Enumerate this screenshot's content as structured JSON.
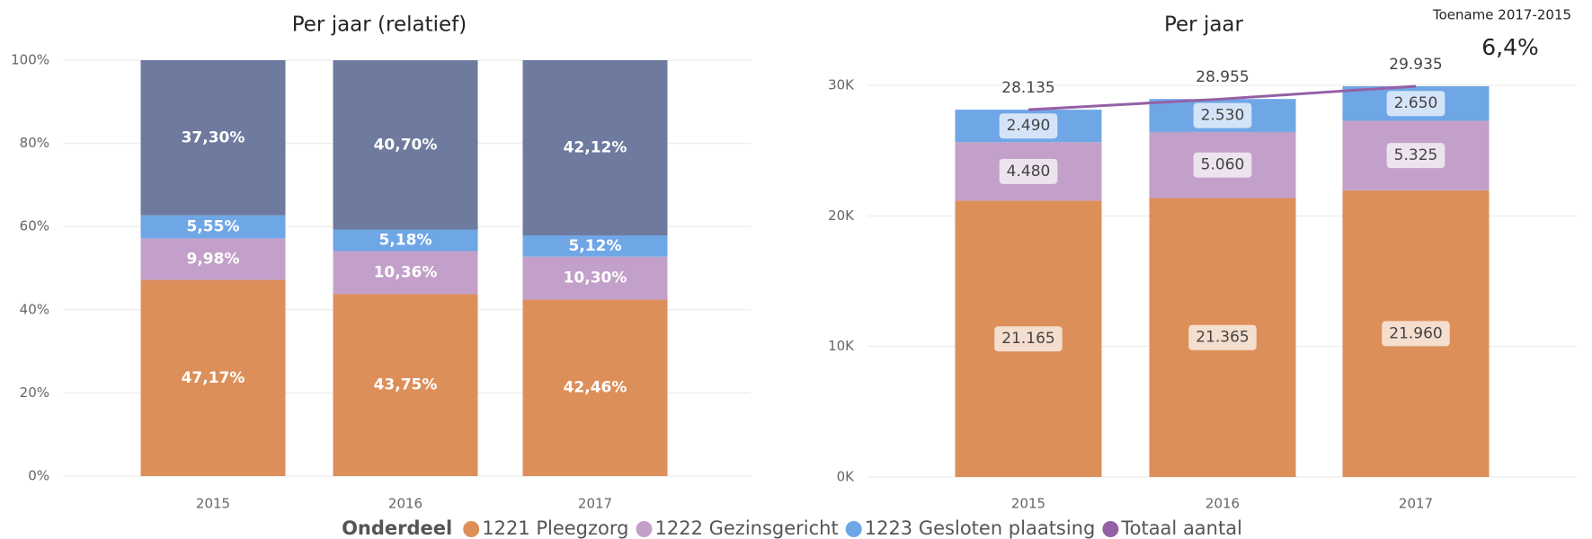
{
  "chart_data": [
    {
      "type": "bar",
      "stacked": true,
      "title": "Per jaar (relatief)",
      "categories": [
        "2015",
        "2016",
        "2017"
      ],
      "ylim": [
        0,
        100
      ],
      "yticks": [
        {
          "value": 0,
          "label": "0%"
        },
        {
          "value": 20,
          "label": "20%"
        },
        {
          "value": 40,
          "label": "40%"
        },
        {
          "value": 60,
          "label": "60%"
        },
        {
          "value": 80,
          "label": "80%"
        },
        {
          "value": 100,
          "label": "100%"
        }
      ],
      "grid": true,
      "series": [
        {
          "color": "#dd8f5a",
          "values": [
            47.17,
            43.75,
            42.46
          ],
          "value_labels": [
            "47,17%",
            "43,75%",
            "42,46%"
          ]
        },
        {
          "color": "#c3a0c9",
          "values": [
            9.98,
            10.36,
            10.3
          ],
          "value_labels": [
            "9,98%",
            "10,36%",
            "10,30%"
          ]
        },
        {
          "color": "#6fa6e6",
          "values": [
            5.55,
            5.18,
            5.12
          ],
          "value_labels": [
            "5,55%",
            "5,18%",
            "5,12%"
          ]
        },
        {
          "color": "#6e7a9e",
          "values": [
            37.3,
            40.7,
            42.12
          ],
          "value_labels": [
            "37,30%",
            "40,70%",
            "42,12%"
          ]
        }
      ]
    },
    {
      "type": "bar",
      "stacked": true,
      "title": "Per jaar",
      "categories": [
        "2015",
        "2016",
        "2017"
      ],
      "ylim": [
        0,
        30000
      ],
      "yticks": [
        {
          "value": 0,
          "label": "0K"
        },
        {
          "value": 10000,
          "label": "10K"
        },
        {
          "value": 20000,
          "label": "20K"
        },
        {
          "value": 30000,
          "label": "30K"
        }
      ],
      "grid": true,
      "series": [
        {
          "name": "1221 Pleegzorg",
          "color": "#dd8f5a",
          "values": [
            21165,
            21365,
            21960
          ],
          "value_labels": [
            "21.165",
            "21.365",
            "21.960"
          ]
        },
        {
          "name": "1222 Gezinsgericht",
          "color": "#c3a0c9",
          "values": [
            4480,
            5060,
            5325
          ],
          "value_labels": [
            "4.480",
            "5.060",
            "5.325"
          ]
        },
        {
          "name": "1223 Gesloten plaatsing",
          "color": "#6fa6e6",
          "values": [
            2490,
            2530,
            2650
          ],
          "value_labels": [
            "2.490",
            "2.530",
            "2.650"
          ]
        },
        {
          "name": "Totaal aantal",
          "type": "line",
          "color": "#9560a5",
          "values": [
            28135,
            28955,
            29935
          ],
          "value_labels": [
            "28.135",
            "28.955",
            "29.935"
          ]
        }
      ]
    }
  ],
  "legend_title": "Onderdeel",
  "kpi": {
    "label": "Toename 2017-2015",
    "value": 6.4,
    "value_label": "6,4%"
  }
}
